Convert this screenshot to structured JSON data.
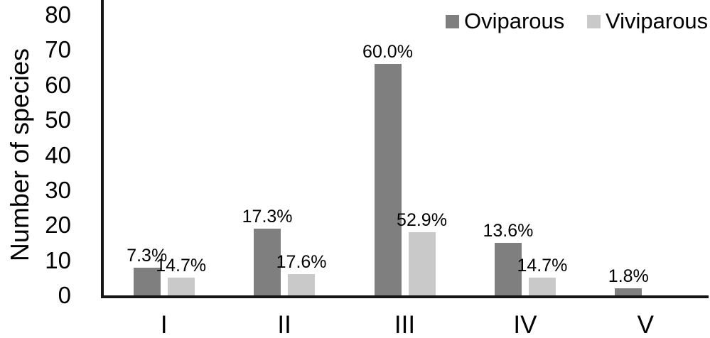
{
  "figure": {
    "background": "#ffffff",
    "axis_color": "#141414",
    "text_color": "#000000"
  },
  "chart_data": {
    "type": "bar",
    "title": "",
    "categories": [
      "I",
      "II",
      "III",
      "IV",
      "V"
    ],
    "series": [
      {
        "name": "Oviparous",
        "color": "#7f7f7f",
        "values": [
          8,
          19,
          66,
          15,
          2
        ],
        "percent_labels": [
          "7.3%",
          "17.3%",
          "60.0%",
          "13.6%",
          "1.8%"
        ]
      },
      {
        "name": "Viviparous",
        "color": "#c9c9c9",
        "values": [
          5,
          6,
          18,
          5,
          0
        ],
        "percent_labels": [
          "14.7%",
          "17.6%",
          "52.9%",
          "14.7%",
          ""
        ]
      }
    ],
    "xlabel": "",
    "ylabel": "Number of species",
    "ylim": [
      0,
      80
    ],
    "yticks": [
      0,
      10,
      20,
      30,
      40,
      50,
      60,
      70,
      80
    ],
    "legend_position": "top-right",
    "grid": false
  }
}
